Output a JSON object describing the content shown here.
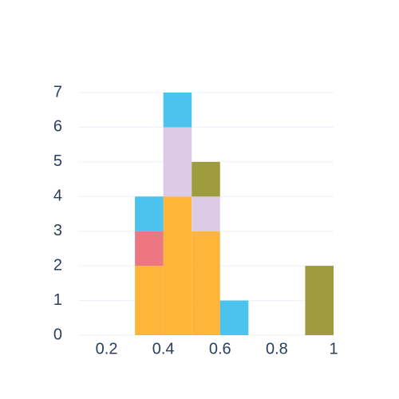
{
  "chart_data": {
    "type": "histogram",
    "barmode": "stack",
    "bins": [
      0.3,
      0.4,
      0.5,
      0.6,
      0.7,
      0.8,
      0.9,
      1.0
    ],
    "series": [
      {
        "color": "#ffb43a",
        "values": [
          2,
          4,
          3,
          0,
          0,
          0,
          0
        ]
      },
      {
        "color": "#ec7681",
        "values": [
          1,
          0,
          0,
          0,
          0,
          0,
          0
        ]
      },
      {
        "color": "#dccae6",
        "values": [
          0,
          2,
          1,
          0,
          0,
          0,
          0
        ]
      },
      {
        "color": "#9e9c3e",
        "values": [
          0,
          0,
          1,
          0,
          0,
          0,
          2
        ]
      },
      {
        "color": "#4cc2ee",
        "values": [
          1,
          1,
          0,
          1,
          0,
          0,
          0
        ]
      }
    ],
    "xlim": [
      0.1,
      1.0
    ],
    "xticks": [
      0.2,
      0.4,
      0.6,
      0.8,
      1
    ],
    "ylim": [
      0,
      7
    ],
    "yticks": [
      0,
      1,
      2,
      3,
      4,
      5,
      6,
      7
    ],
    "grid": true
  }
}
